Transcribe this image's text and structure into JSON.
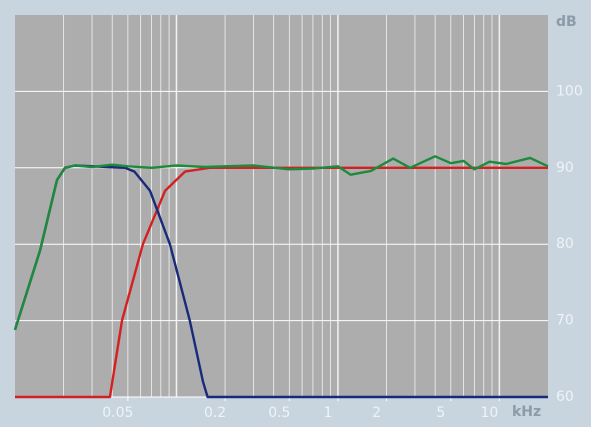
{
  "chart_data": {
    "type": "line",
    "x_label": "kHz",
    "y_label": "dB",
    "xlog": true,
    "grid": true,
    "xlim": [
      0.01,
      20
    ],
    "ylim": [
      60,
      110
    ],
    "xticks": [
      0.05,
      0.2,
      0.5,
      1,
      2,
      5,
      10
    ],
    "yticks": [
      60,
      70,
      80,
      90,
      100
    ],
    "series": [
      {
        "color": "#d42020",
        "x": [
          0.01,
          0.0387,
          0.046,
          0.062,
          0.085,
          0.113,
          0.16,
          20
        ],
        "values": [
          60,
          60,
          70,
          80,
          87,
          89.5,
          90,
          90
        ]
      },
      {
        "color": "#1a2a7a",
        "x": [
          0.01,
          0.0143,
          0.0182,
          0.0204,
          0.0235,
          0.048,
          0.055,
          0.0686,
          0.091,
          0.121,
          0.146,
          0.156,
          20
        ],
        "values": [
          68.8,
          79.2,
          88.4,
          90,
          90.3,
          90,
          89.5,
          87,
          80,
          70,
          62,
          60,
          60
        ]
      },
      {
        "color": "#1e8a3c",
        "x": [
          0.01,
          0.0143,
          0.0182,
          0.0204,
          0.0235,
          0.03,
          0.04,
          0.05,
          0.07,
          0.1,
          0.15,
          0.2,
          0.3,
          0.5,
          0.7,
          1,
          1.2,
          1.6,
          2.2,
          2.8,
          4,
          5,
          6,
          7,
          8.7,
          11,
          15.5,
          20
        ],
        "values": [
          68.8,
          79.2,
          88.4,
          90,
          90.3,
          90.1,
          90.4,
          90.2,
          90,
          90.3,
          90.1,
          90.2,
          90.3,
          89.8,
          89.9,
          90.2,
          89.1,
          89.6,
          91.2,
          90,
          91.5,
          90.6,
          90.9,
          89.8,
          90.8,
          90.5,
          91.3,
          90.2
        ]
      }
    ]
  }
}
